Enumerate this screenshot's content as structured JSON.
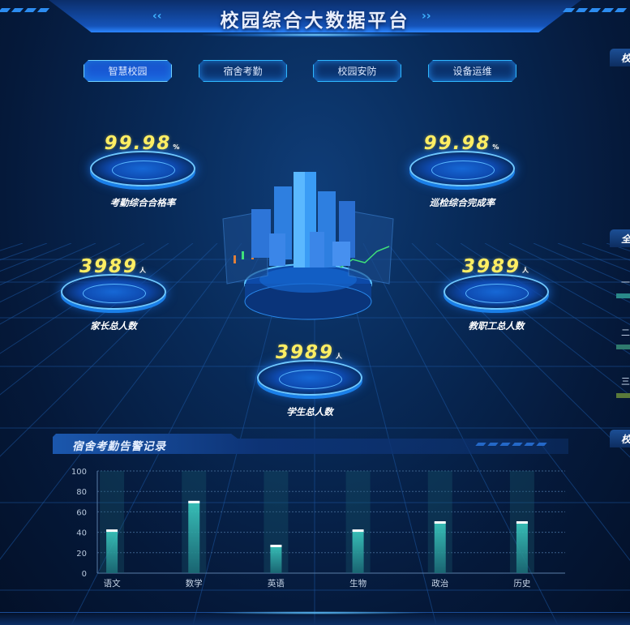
{
  "header": {
    "title": "校园综合大数据平台"
  },
  "nav": {
    "tabs": [
      {
        "label": "智慧校园",
        "active": true
      },
      {
        "label": "宿舍考勤",
        "active": false
      },
      {
        "label": "校园安防",
        "active": false
      },
      {
        "label": "设备运维",
        "active": false
      }
    ]
  },
  "stats": [
    {
      "value": "99.98",
      "unit": "%",
      "label": "考勤综合合格率"
    },
    {
      "value": "99.98",
      "unit": "%",
      "label": "巡检综合完成率"
    },
    {
      "value": "3989",
      "unit": "人",
      "label": "家长总人数"
    },
    {
      "value": "3989",
      "unit": "人",
      "label": "教职工总人数"
    },
    {
      "value": "3989",
      "unit": "人",
      "label": "学生总人数"
    }
  ],
  "right_panel": {
    "titles": [
      "校",
      "全",
      "校"
    ],
    "items": [
      {
        "label": "一",
        "color": "#2a8a8a"
      },
      {
        "label": "二",
        "color": "#2f7a6e"
      },
      {
        "label": "三",
        "color": "#5a7a3a"
      }
    ]
  },
  "colors": {
    "accent": "#2fb8ff",
    "number": "#ffee63",
    "bar": "#3fd6c8"
  },
  "chart_panel": {
    "title": "宿舍考勤告警记录"
  },
  "chart_data": {
    "type": "bar",
    "categories": [
      "语文",
      "数学",
      "英语",
      "生物",
      "政治",
      "历史"
    ],
    "values": [
      42,
      70,
      27,
      42,
      50,
      50
    ],
    "background_values": [
      100,
      100,
      100,
      100,
      100,
      100
    ],
    "ylim": [
      0,
      100
    ],
    "yticks": [
      0,
      20,
      40,
      60,
      80,
      100
    ],
    "grid": true,
    "xlabel": "",
    "ylabel": ""
  }
}
